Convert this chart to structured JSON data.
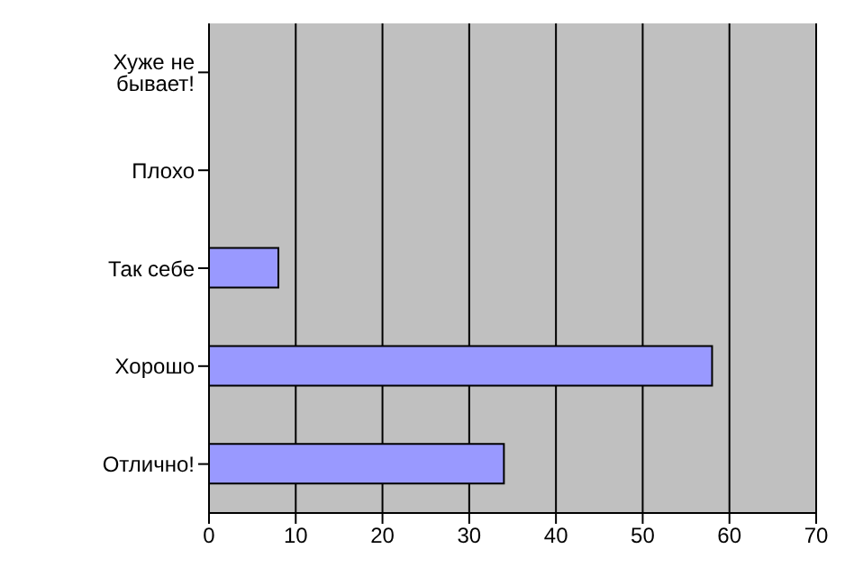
{
  "chart_data": {
    "type": "bar",
    "orientation": "horizontal",
    "categories": [
      "Хуже не бывает!",
      "Плохо",
      "Так себе",
      "Хорошо",
      "Отлично!"
    ],
    "values": [
      0,
      0,
      8,
      58,
      34
    ],
    "color": "#9999ff",
    "xlim": [
      0,
      70
    ],
    "xticks": [
      0,
      10,
      20,
      30,
      40,
      50,
      60,
      70
    ],
    "grid": "x"
  }
}
